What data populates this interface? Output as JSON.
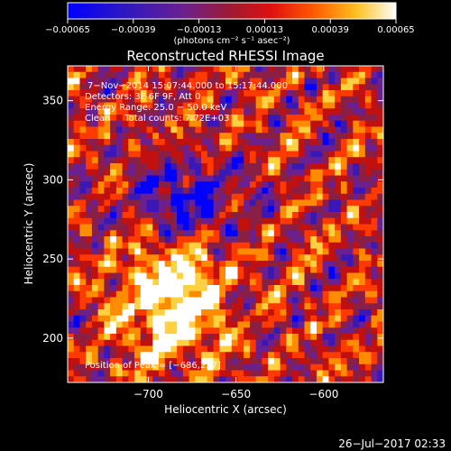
{
  "chart_data": {
    "type": "heatmap",
    "title": "Reconstructed RHESSI Image",
    "xlabel": "Heliocentric X (arcsec)",
    "ylabel": "Heliocentric Y (arcsec)",
    "xlim": [
      -746,
      -566
    ],
    "ylim": [
      172,
      372
    ],
    "x_ticks": [
      -700,
      -650,
      -600
    ],
    "x_tick_labels": [
      "−700",
      "−650",
      "−600"
    ],
    "y_ticks": [
      200,
      250,
      300,
      350
    ],
    "y_tick_labels": [
      "200",
      "250",
      "300",
      "350"
    ],
    "colorbar": {
      "ticks": [
        -0.00065,
        -0.00039,
        -0.00013,
        0.00013,
        0.00039,
        0.00065
      ],
      "tick_labels": [
        "−0.00065",
        "−0.00039",
        "−0.00013",
        "0.00013",
        "0.00039",
        "0.00065"
      ],
      "units": "(photons cm⁻² s⁻¹ asec⁻²)",
      "colors": [
        "#0000ff",
        "#3a18b8",
        "#6a2090",
        "#8a1f45",
        "#c01010",
        "#ff3a00",
        "#ff8c00",
        "#ffd040",
        "#ffffff"
      ]
    },
    "peak": {
      "x": -686,
      "y": 227
    },
    "annotations": {
      "time": "7−Nov−2014 15:07:44.000 to 15:17:44.000",
      "detectors": "Detectors: 3F 6F 9F, Att 0",
      "energy": "Energy Range: 25.0 − 50.0 keV",
      "clean": "Clean     Total counts: 7.72E+03",
      "peak_label": "Position of Peak = [−686,227]"
    },
    "grid": false
  },
  "footer": {
    "timestamp": "26−Jul−2017 02:33"
  }
}
